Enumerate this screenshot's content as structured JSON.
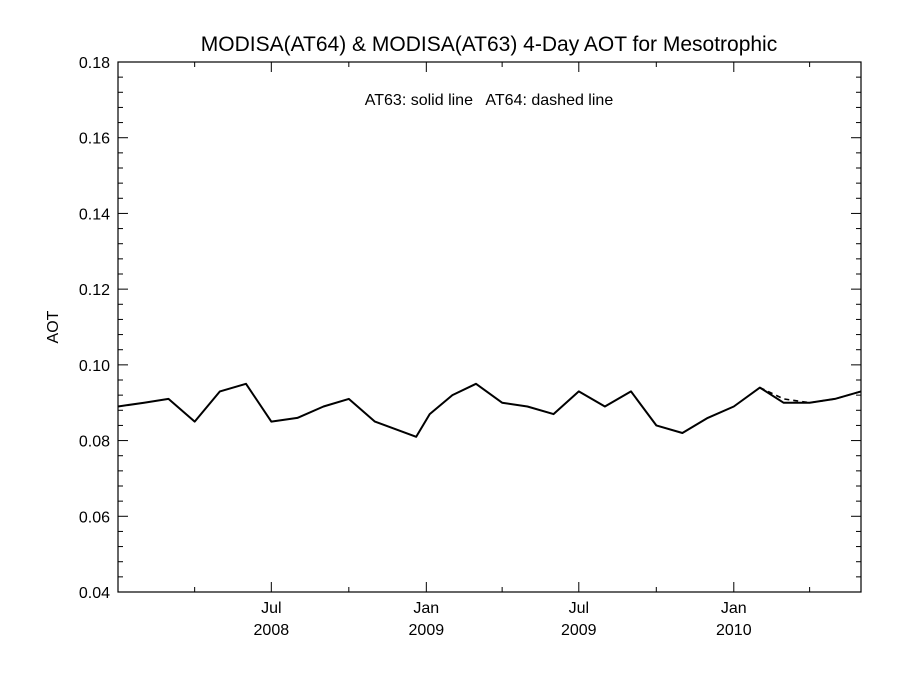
{
  "chart_data": {
    "type": "line",
    "title": "MODISA(AT64) & MODISA(AT63) 4-Day AOT for Mesotrophic",
    "annotation": "AT63: solid line   AT64: dashed line",
    "xlabel": "",
    "ylabel": "AOT",
    "xlim": [
      "2008-01-01",
      "2010-06-01"
    ],
    "ylim": [
      0.04,
      0.18
    ],
    "y_ticks": [
      "0.04",
      "0.06",
      "0.08",
      "0.10",
      "0.12",
      "0.14",
      "0.16",
      "0.18"
    ],
    "x_ticks": [
      {
        "date": "2008-07-01",
        "label": [
          "Jul",
          "2008"
        ]
      },
      {
        "date": "2009-01-01",
        "label": [
          "Jan",
          "2009"
        ]
      },
      {
        "date": "2009-07-01",
        "label": [
          "Jul",
          "2009"
        ]
      },
      {
        "date": "2010-01-01",
        "label": [
          "Jan",
          "2010"
        ]
      }
    ],
    "grid": false,
    "series": [
      {
        "name": "AT63",
        "style": "solid",
        "color": "#000000",
        "points": [
          [
            "2008-01-01",
            0.089
          ],
          [
            "2008-02-01",
            0.09
          ],
          [
            "2008-03-01",
            0.091
          ],
          [
            "2008-04-01",
            0.085
          ],
          [
            "2008-05-01",
            0.093
          ],
          [
            "2008-06-01",
            0.095
          ],
          [
            "2008-07-01",
            0.085
          ],
          [
            "2008-08-01",
            0.086
          ],
          [
            "2008-09-01",
            0.089
          ],
          [
            "2008-10-01",
            0.091
          ],
          [
            "2008-11-01",
            0.085
          ],
          [
            "2008-12-20",
            0.081
          ],
          [
            "2009-01-05",
            0.087
          ],
          [
            "2009-02-01",
            0.092
          ],
          [
            "2009-03-01",
            0.095
          ],
          [
            "2009-04-01",
            0.09
          ],
          [
            "2009-05-01",
            0.089
          ],
          [
            "2009-06-01",
            0.087
          ],
          [
            "2009-07-01",
            0.093
          ],
          [
            "2009-08-01",
            0.089
          ],
          [
            "2009-09-01",
            0.093
          ],
          [
            "2009-10-01",
            0.084
          ],
          [
            "2009-11-01",
            0.082
          ],
          [
            "2009-12-01",
            0.086
          ],
          [
            "2010-01-01",
            0.089
          ],
          [
            "2010-02-01",
            0.094
          ],
          [
            "2010-03-01",
            0.09
          ],
          [
            "2010-04-01",
            0.09
          ],
          [
            "2010-05-01",
            0.091
          ],
          [
            "2010-06-01",
            0.093
          ]
        ]
      },
      {
        "name": "AT64",
        "style": "dashed",
        "color": "#000000",
        "points": [
          [
            "2010-02-01",
            0.094
          ],
          [
            "2010-03-01",
            0.091
          ],
          [
            "2010-04-01",
            0.09
          ],
          [
            "2010-05-01",
            0.091
          ],
          [
            "2010-06-01",
            0.093
          ]
        ]
      }
    ]
  }
}
